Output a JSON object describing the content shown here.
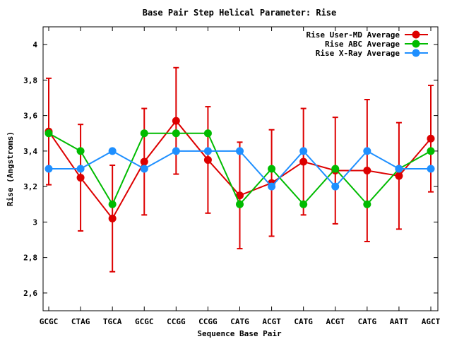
{
  "chart_data": {
    "type": "line",
    "title": "Base Pair Step Helical Parameter: Rise",
    "xlabel": "Sequence Base Pair",
    "ylabel": "Rise (Angstroms)",
    "categories": [
      "GCGC",
      "CTAG",
      "TGCA",
      "GCGC",
      "CCGG",
      "CCGG",
      "CATG",
      "ACGT",
      "CATG",
      "ACGT",
      "CATG",
      "AATT",
      "AGCT"
    ],
    "ylim": [
      2.5,
      4.1
    ],
    "yticks": [
      2.6,
      2.8,
      3,
      3.2,
      3.4,
      3.6,
      3.8,
      4
    ],
    "ytick_labels": [
      "2,6",
      "2,8",
      "3",
      "3,2",
      "3,4",
      "3,6",
      "3,8",
      "4"
    ],
    "grid": false,
    "legend_position": "top-right",
    "series": [
      {
        "name": "Rise User-MD Average",
        "color": "#dd0000",
        "values": [
          3.51,
          3.25,
          3.02,
          3.34,
          3.57,
          3.35,
          3.15,
          3.22,
          3.34,
          3.29,
          3.29,
          3.26,
          3.47
        ],
        "error": [
          0.3,
          0.3,
          0.3,
          0.3,
          0.3,
          0.3,
          0.3,
          0.3,
          0.3,
          0.3,
          0.4,
          0.3,
          0.3
        ]
      },
      {
        "name": "Rise ABC Average",
        "color": "#00bb00",
        "values": [
          3.5,
          3.4,
          3.1,
          3.5,
          3.5,
          3.5,
          3.1,
          3.3,
          3.1,
          3.3,
          3.1,
          3.3,
          3.4
        ]
      },
      {
        "name": "Rise X-Ray Average",
        "color": "#1e8fff",
        "values": [
          3.3,
          3.3,
          3.4,
          3.3,
          3.4,
          3.4,
          3.4,
          3.2,
          3.4,
          3.2,
          3.4,
          3.3,
          3.3
        ]
      }
    ]
  }
}
